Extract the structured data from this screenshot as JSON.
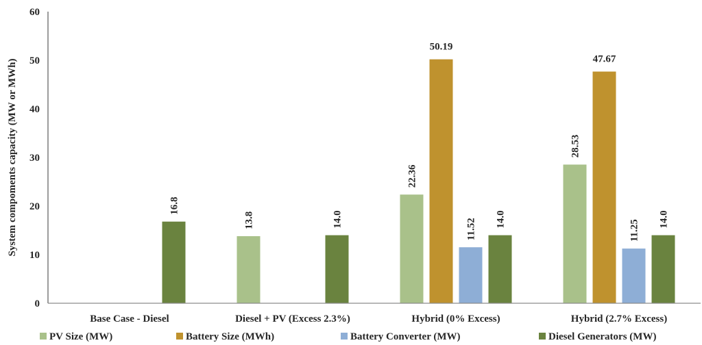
{
  "chart_data": {
    "type": "bar",
    "ylabel": "System compoments capacity (MW or MWh)",
    "xlabel": "",
    "ylim": [
      0,
      60
    ],
    "yticks": [
      0,
      10,
      20,
      30,
      40,
      50,
      60
    ],
    "grid": false,
    "legend_position": "bottom",
    "categories": [
      "Base Case - Diesel",
      "Diesel + PV (Excess 2.3%)",
      "Hybrid (0% Excess)",
      "Hybrid (2.7% Excess)"
    ],
    "series": [
      {
        "name": "PV Size (MW)",
        "color": "#a9c18a",
        "values": [
          null,
          13.8,
          22.36,
          28.53
        ],
        "labels": [
          "",
          "13.8",
          "22.36",
          "28.53"
        ]
      },
      {
        "name": "Battery Size (MWh)",
        "color": "#bf922e",
        "values": [
          null,
          null,
          50.19,
          47.67
        ],
        "labels": [
          "",
          "",
          "50.19",
          "47.67"
        ]
      },
      {
        "name": "Battery Converter (MW)",
        "color": "#8eaed6",
        "values": [
          null,
          null,
          11.52,
          11.25
        ],
        "labels": [
          "",
          "",
          "11.52",
          "11.25"
        ]
      },
      {
        "name": "Diesel Generators (MW)",
        "color": "#6a833f",
        "values": [
          16.8,
          14.0,
          14.0,
          14.0
        ],
        "labels": [
          "16.8",
          "14.0",
          "14.0",
          "14.0"
        ]
      }
    ],
    "label_orientation": [
      "horizontal",
      "vertical"
    ]
  }
}
